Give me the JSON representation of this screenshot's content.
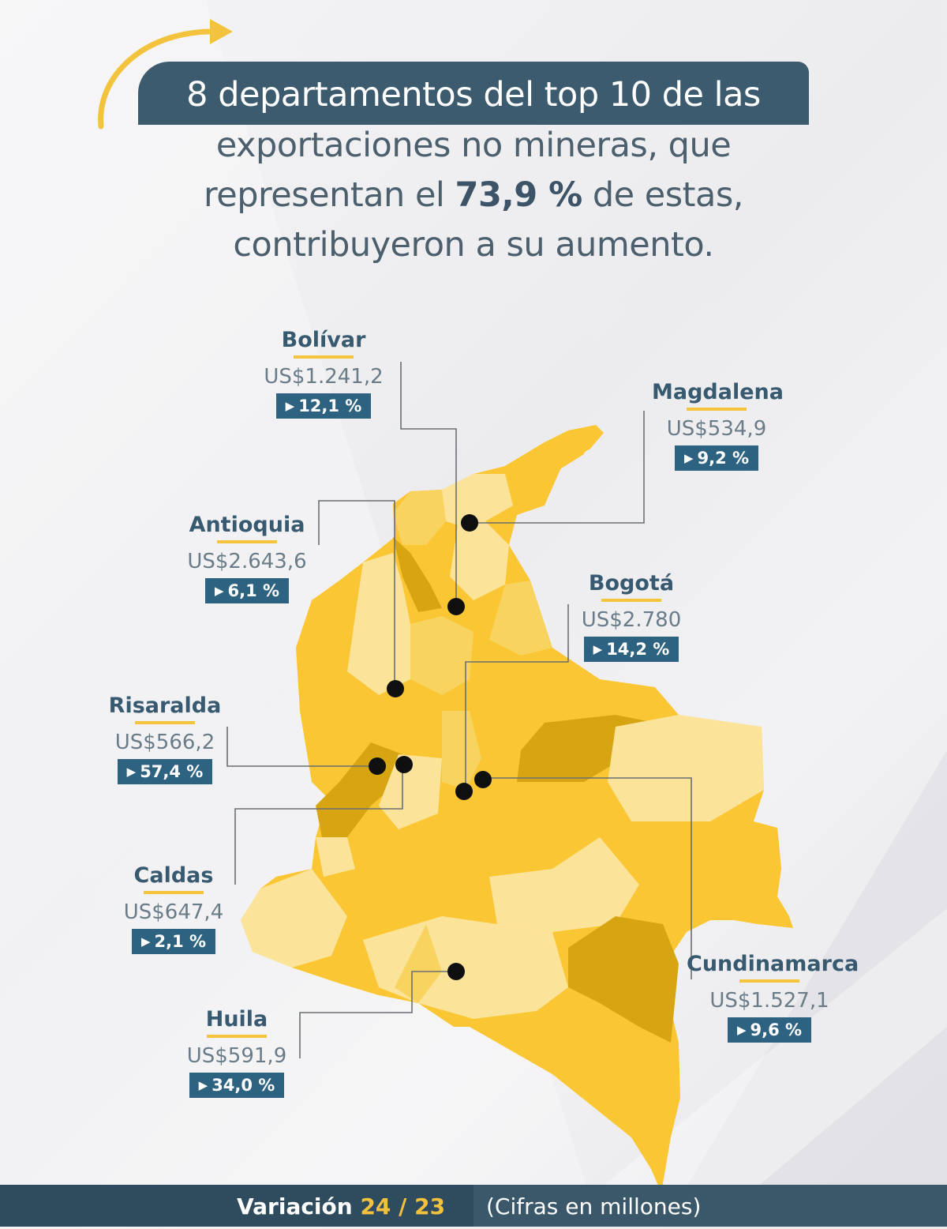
{
  "headline": {
    "line1": "8 departamentos  del top 10 de las",
    "line2": "exportaciones no mineras, que",
    "line3_pre": "representan el ",
    "line3_bold": "73,9 %",
    "line3_post": " de estas,",
    "line4": "contribuyeron a su aumento."
  },
  "departments": [
    {
      "key": "bolivar",
      "name": "Bolívar",
      "value": "US$1.241,2",
      "change": "12,1 %"
    },
    {
      "key": "magdalena",
      "name": "Magdalena",
      "value": "US$534,9",
      "change": "9,2 %"
    },
    {
      "key": "antioquia",
      "name": "Antioquia",
      "value": "US$2.643,6",
      "change": "6,1 %"
    },
    {
      "key": "bogota",
      "name": "Bogotá",
      "value": "US$2.780",
      "change": "14,2 %"
    },
    {
      "key": "risaralda",
      "name": "Risaralda",
      "value": "US$566,2",
      "change": "57,4 %"
    },
    {
      "key": "caldas",
      "name": "Caldas",
      "value": "US$647,4",
      "change": "2,1 %"
    },
    {
      "key": "cundinamarca",
      "name": "Cundinamarca",
      "value": "US$1.527,1",
      "change": "9,6 %"
    },
    {
      "key": "huila",
      "name": "Huila",
      "value": "US$591,9",
      "change": "34,0 %"
    }
  ],
  "footer": {
    "variation_label": "Variación ",
    "variation_years": "24 / 23",
    "note": "(Cifras en millones)"
  },
  "colors": {
    "banner": "#3d5b6f",
    "badge": "#2d6280",
    "accent_yellow": "#f5c43e",
    "map_light": "#fbe49a",
    "map_mid": "#fbc634",
    "map_dark": "#d7a412"
  },
  "icons": {
    "arrow": "curved-arrow-icon",
    "badge_triangle": "play-triangle-icon"
  }
}
